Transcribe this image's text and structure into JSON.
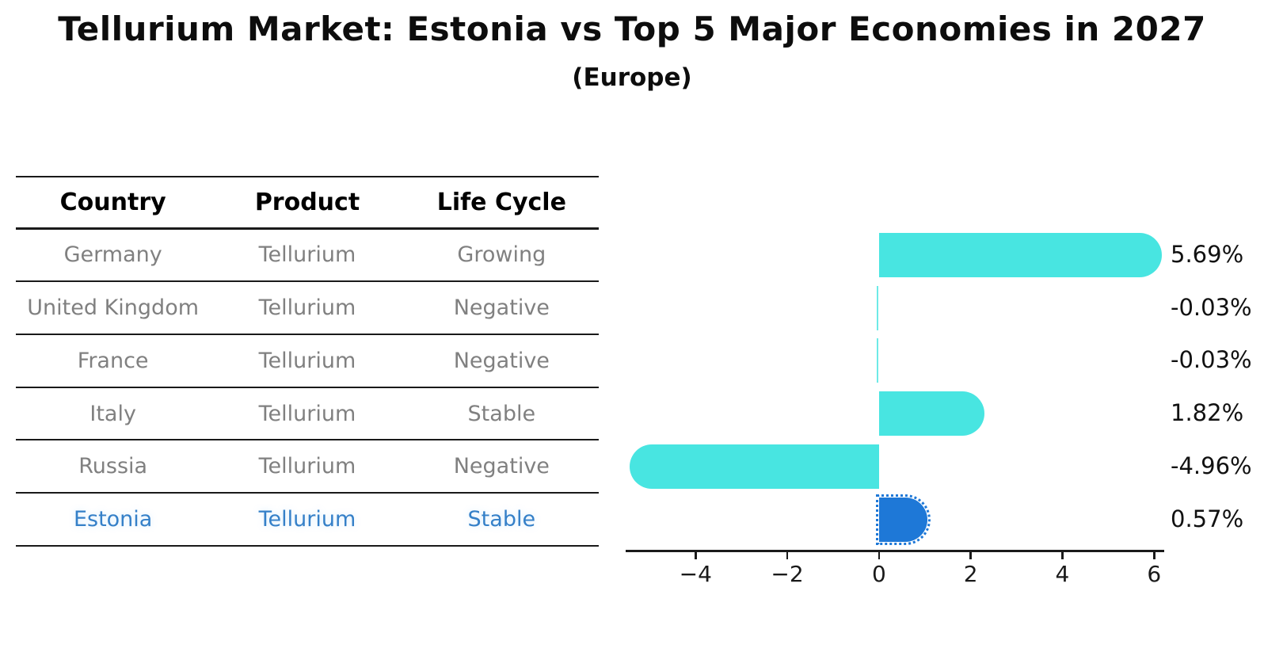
{
  "title": "Tellurium Market: Estonia vs Top 5 Major Economies in 2027",
  "subtitle": "(Europe)",
  "table": {
    "headers": [
      "Country",
      "Product",
      "Life Cycle"
    ],
    "rows": [
      {
        "country": "Germany",
        "product": "Tellurium",
        "life_cycle": "Growing",
        "highlight": false
      },
      {
        "country": "United Kingdom",
        "product": "Tellurium",
        "life_cycle": "Negative",
        "highlight": false
      },
      {
        "country": "France",
        "product": "Tellurium",
        "life_cycle": "Negative",
        "highlight": false
      },
      {
        "country": "Italy",
        "product": "Tellurium",
        "life_cycle": "Stable",
        "highlight": false
      },
      {
        "country": "Russia",
        "product": "Tellurium",
        "life_cycle": "Negative",
        "highlight": false
      },
      {
        "country": "Estonia",
        "product": "Tellurium",
        "life_cycle": "Stable",
        "highlight": true
      }
    ]
  },
  "chart_data": {
    "type": "bar",
    "orientation": "horizontal",
    "categories": [
      "Germany",
      "United Kingdom",
      "France",
      "Italy",
      "Russia",
      "Estonia"
    ],
    "values": [
      5.69,
      -0.03,
      -0.03,
      1.82,
      -4.96,
      0.57
    ],
    "bar_labels": [
      "5.69%",
      "-0.03%",
      "-0.03%",
      "1.82%",
      "-4.96%",
      "0.57%"
    ],
    "highlight_index": 5,
    "xticks": [
      -4,
      -2,
      0,
      2,
      4,
      6
    ],
    "xtick_labels": [
      "−4",
      "−2",
      "0",
      "2",
      "4",
      "6"
    ],
    "xlim": [
      -5.49,
      6.22
    ],
    "grid": false,
    "legend": null,
    "bar_color": "#48E5E1",
    "highlight_bar_color": "#1E78D7"
  },
  "colors": {
    "background": "#FFFFFF",
    "table_text": "#808080",
    "header_text": "#000000",
    "highlight_text": "#3580C8",
    "line": "#1A1A1A",
    "value_label": "#111111"
  }
}
